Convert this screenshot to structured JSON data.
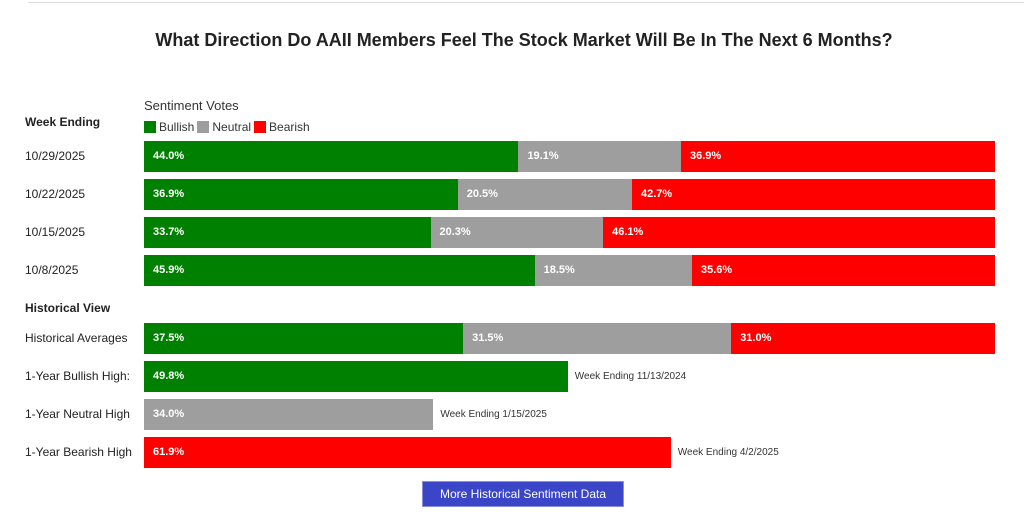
{
  "chart_data": {
    "type": "bar",
    "stacked": true,
    "title": "What Direction Do AAII Members Feel The Stock Market Will Be In The Next 6 Months?",
    "legend_title": "Sentiment Votes",
    "row_header": "Week Ending",
    "legend": [
      {
        "name": "Bullish",
        "color": "#008000"
      },
      {
        "name": "Neutral",
        "color": "#9e9e9e"
      },
      {
        "name": "Bearish",
        "color": "#ff0000"
      }
    ],
    "weeks": [
      {
        "label": "10/29/2025",
        "values": [
          44.0,
          19.1,
          36.9
        ]
      },
      {
        "label": "10/22/2025",
        "values": [
          36.9,
          20.5,
          42.7
        ]
      },
      {
        "label": "10/15/2025",
        "values": [
          33.7,
          20.3,
          46.1
        ]
      },
      {
        "label": "10/8/2025",
        "values": [
          45.9,
          18.5,
          35.6
        ]
      }
    ],
    "historical_header": "Historical View",
    "historical": [
      {
        "label": "Historical Averages",
        "values": [
          37.5,
          31.5,
          31.0
        ]
      },
      {
        "label": "1-Year Bullish High:",
        "value": 49.8,
        "series": 0,
        "note": "Week Ending 11/13/2024"
      },
      {
        "label": "1-Year Neutral High",
        "value": 34.0,
        "series": 1,
        "note": "Week Ending 1/15/2025"
      },
      {
        "label": "1-Year Bearish High",
        "value": 61.9,
        "series": 2,
        "note": "Week Ending 4/2/2025"
      }
    ],
    "xlim": [
      0,
      100
    ]
  },
  "button_label": "More Historical Sentiment Data"
}
